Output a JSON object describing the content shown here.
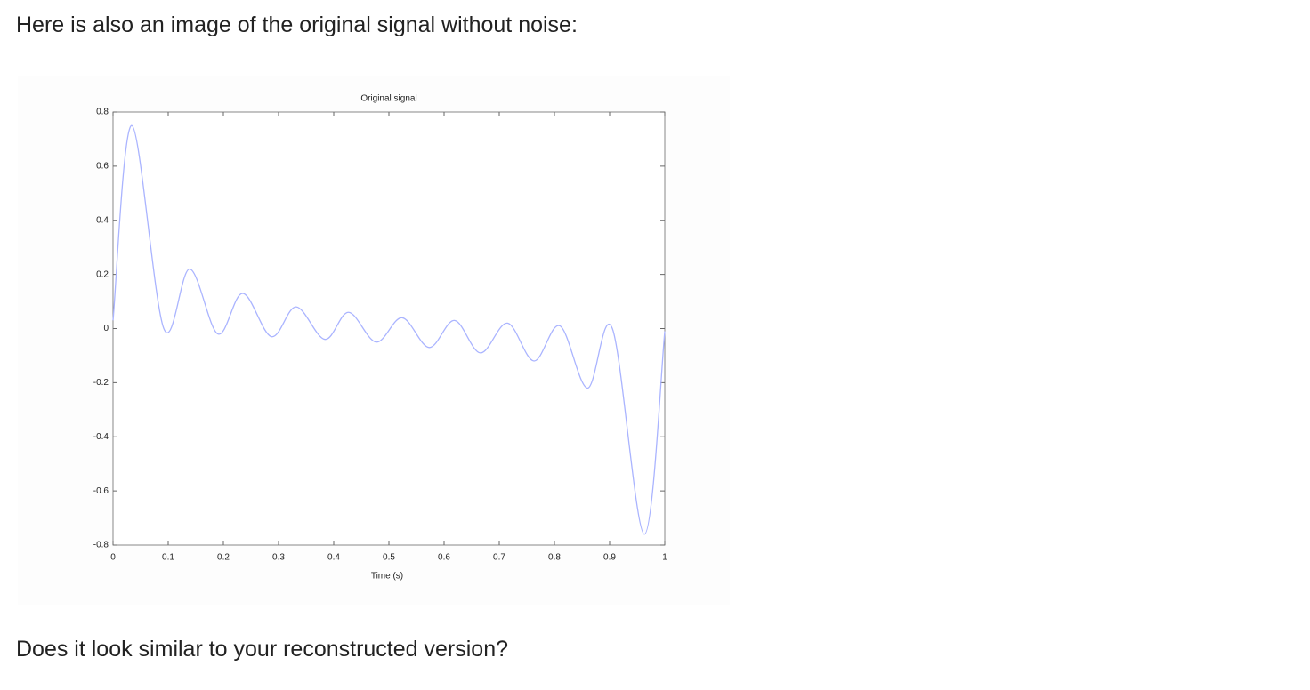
{
  "paragraphs": [
    "Here is also an image of the original signal without noise:",
    "Does it look similar to your reconstructed version?"
  ],
  "chart_data": {
    "type": "line",
    "title": "Original signal",
    "x_label": "Time (s)",
    "color": "#aab4ff",
    "x": [
      0,
      0.034,
      0.092,
      0.139,
      0.19,
      0.235,
      0.287,
      0.332,
      0.384,
      0.427,
      0.477,
      0.524,
      0.573,
      0.619,
      0.666,
      0.715,
      0.763,
      0.81,
      0.86,
      0.905,
      0.963,
      1
    ],
    "values": [
      0.03,
      0.75,
      0.0,
      0.22,
      -0.02,
      0.13,
      -0.03,
      0.08,
      -0.04,
      0.06,
      -0.05,
      0.04,
      -0.07,
      0.03,
      -0.09,
      0.02,
      -0.12,
      0.01,
      -0.22,
      0.0,
      -0.76,
      -0.01
    ],
    "xlim": [
      0,
      1
    ],
    "xticks": [
      0,
      0.1,
      0.2,
      0.3,
      0.4,
      0.5,
      0.6,
      0.7,
      0.8,
      0.9,
      1
    ],
    "ylim": [
      -0.8,
      0.8
    ],
    "yticks": [
      -0.8,
      -0.6,
      -0.4,
      -0.2,
      0,
      0.2,
      0.4,
      0.6,
      0.8
    ]
  }
}
